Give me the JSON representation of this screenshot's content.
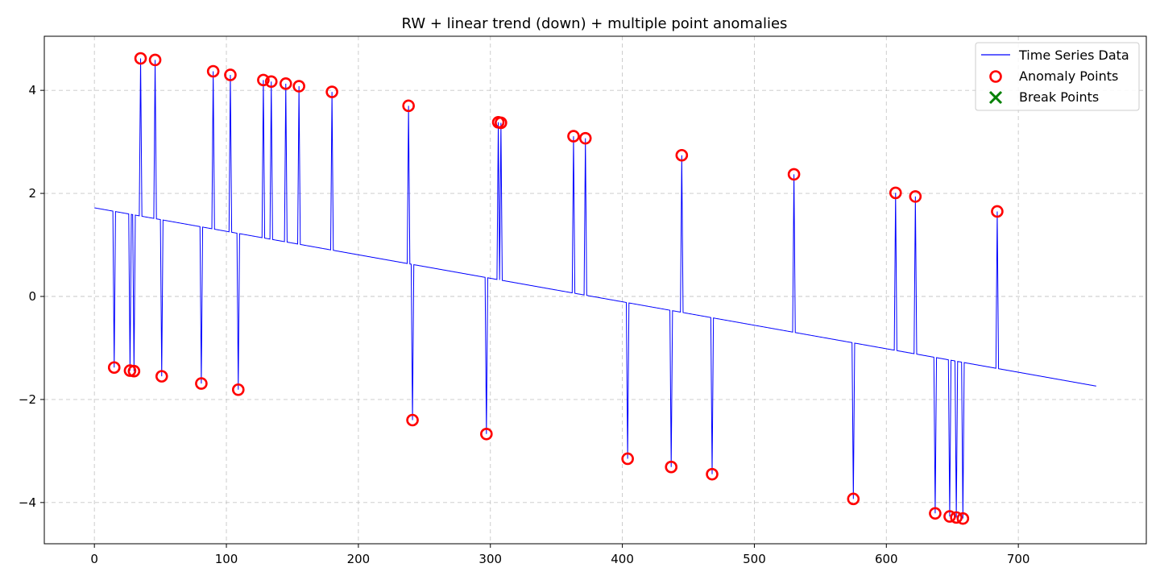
{
  "chart_data": {
    "type": "line",
    "title": "RW + linear trend (down) + multiple point anomalies",
    "xlabel": "",
    "ylabel": "",
    "xlim": [
      -37.95,
      796.95
    ],
    "ylim": [
      -4.8,
      5.05
    ],
    "x_ticks": [
      0,
      100,
      200,
      300,
      400,
      500,
      600,
      700
    ],
    "y_ticks": [
      -4,
      -2,
      0,
      2,
      4
    ],
    "grid": true,
    "legend_position": "top-right",
    "trend": {
      "x_start": 0,
      "y_start": 1.72,
      "x_end": 759,
      "y_end": -1.74
    },
    "series": [
      {
        "name": "Time Series Data",
        "kind": "line",
        "color": "#0000ff"
      },
      {
        "name": "Anomaly Points",
        "kind": "marker-ring",
        "color": "#ff0000",
        "points": [
          [
            15,
            -1.38
          ],
          [
            27,
            -1.44
          ],
          [
            30,
            -1.45
          ],
          [
            35,
            4.62
          ],
          [
            46,
            4.59
          ],
          [
            51,
            -1.55
          ],
          [
            81,
            -1.69
          ],
          [
            90,
            4.37
          ],
          [
            103,
            4.3
          ],
          [
            109,
            -1.81
          ],
          [
            128,
            4.2
          ],
          [
            134,
            4.17
          ],
          [
            145,
            4.13
          ],
          [
            155,
            4.08
          ],
          [
            180,
            3.97
          ],
          [
            238,
            3.7
          ],
          [
            241,
            -2.4
          ],
          [
            297,
            -2.67
          ],
          [
            306,
            3.38
          ],
          [
            308,
            3.37
          ],
          [
            363,
            3.11
          ],
          [
            372,
            3.07
          ],
          [
            404,
            -3.15
          ],
          [
            437,
            -3.31
          ],
          [
            445,
            2.74
          ],
          [
            468,
            -3.45
          ],
          [
            530,
            2.37
          ],
          [
            575,
            -3.93
          ],
          [
            607,
            2.01
          ],
          [
            622,
            1.94
          ],
          [
            637,
            -4.21
          ],
          [
            648,
            -4.27
          ],
          [
            653,
            -4.29
          ],
          [
            658,
            -4.31
          ],
          [
            684,
            1.65
          ]
        ]
      },
      {
        "name": "Break Points",
        "kind": "marker-x",
        "color": "#008000",
        "points": []
      }
    ]
  }
}
